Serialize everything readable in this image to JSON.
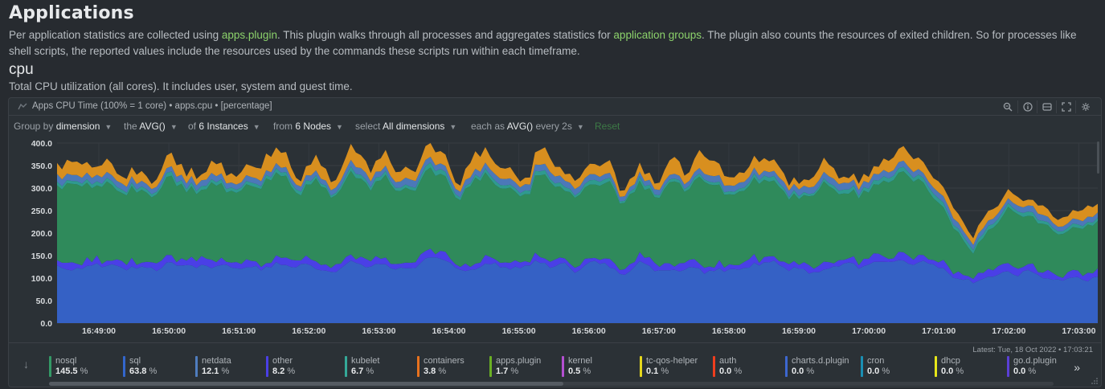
{
  "page": {
    "title": "Applications",
    "intro": {
      "t1": "Per application statistics are collected using ",
      "link1": "apps.plugin",
      "t2": ". This plugin walks through all processes and aggregates statistics for ",
      "link2": "application groups",
      "t3": ". The plugin also counts the resources of exited children. So for processes like shell scripts, the reported values include the resources used by the commands these scripts run within each timeframe."
    },
    "section": "cpu",
    "section_desc": "Total CPU utilization (all cores). It includes user, system and guest time."
  },
  "chart_header": {
    "title": "Apps CPU Time (100% = 1 core) • apps.cpu • [percentage]"
  },
  "toolbar": {
    "group_by_label": "Group by",
    "group_by_value": "dimension",
    "the_label": "the",
    "the_value": "AVG()",
    "of_label": "of",
    "of_value": "6 Instances",
    "from_label": "from",
    "from_value": "6 Nodes",
    "select_label": "select",
    "select_value": "All dimensions",
    "each_label": "each as",
    "each_value": "AVG()",
    "every_label": "every 2s",
    "reset": "Reset"
  },
  "chart_data": {
    "type": "area",
    "stacked": true,
    "ylim": [
      0,
      400
    ],
    "yticks": [
      "0.0",
      "50.0",
      "100.0",
      "150.0",
      "200.0",
      "250.0",
      "300.0",
      "350.0",
      "400.0"
    ],
    "xticks": [
      "16:49:00",
      "16:50:00",
      "16:51:00",
      "16:52:00",
      "16:53:00",
      "16:54:00",
      "16:55:00",
      "16:56:00",
      "16:57:00",
      "16:58:00",
      "16:59:00",
      "17:00:00",
      "17:01:00",
      "17:02:00",
      "17:03:00"
    ],
    "grid": true,
    "points": 210,
    "series_order": [
      "nosql",
      "sql",
      "netdata",
      "other",
      "kubelet",
      "containers"
    ],
    "approx_levels": {
      "nosql": 145.5,
      "sql": 63.8,
      "netdata": 12.1,
      "other": 8.2,
      "kubelet": 6.7,
      "containers": 3.8
    }
  },
  "legend": {
    "latest": "Latest:  Tue, 18 Oct 2022 • 17:03:21",
    "items": [
      {
        "name": "nosql",
        "value": "145.5",
        "unit": "%",
        "color": "#339966"
      },
      {
        "name": "sql",
        "value": "63.8",
        "unit": "%",
        "color": "#3366cc"
      },
      {
        "name": "netdata",
        "value": "12.1",
        "unit": "%",
        "color": "#4f7dbf"
      },
      {
        "name": "other",
        "value": "8.2",
        "unit": "%",
        "color": "#4a3fe6"
      },
      {
        "name": "kubelet",
        "value": "6.7",
        "unit": "%",
        "color": "#35a999"
      },
      {
        "name": "containers",
        "value": "3.8",
        "unit": "%",
        "color": "#e8721e"
      },
      {
        "name": "apps.plugin",
        "value": "1.7",
        "unit": "%",
        "color": "#6ab023"
      },
      {
        "name": "kernel",
        "value": "0.5",
        "unit": "%",
        "color": "#b44fd1"
      },
      {
        "name": "tc-qos-helper",
        "value": "0.1",
        "unit": "%",
        "color": "#e5d71c"
      },
      {
        "name": "auth",
        "value": "0.0",
        "unit": "%",
        "color": "#f03e1e"
      },
      {
        "name": "charts.d.plugin",
        "value": "0.0",
        "unit": "%",
        "color": "#3d67cf"
      },
      {
        "name": "cron",
        "value": "0.0",
        "unit": "%",
        "color": "#1a8fb3"
      },
      {
        "name": "dhcp",
        "value": "0.0",
        "unit": "%",
        "color": "#e6e61a"
      },
      {
        "name": "go.d.plugin",
        "value": "0.0",
        "unit": "%",
        "color": "#5a3fd6"
      }
    ],
    "more": "»"
  }
}
